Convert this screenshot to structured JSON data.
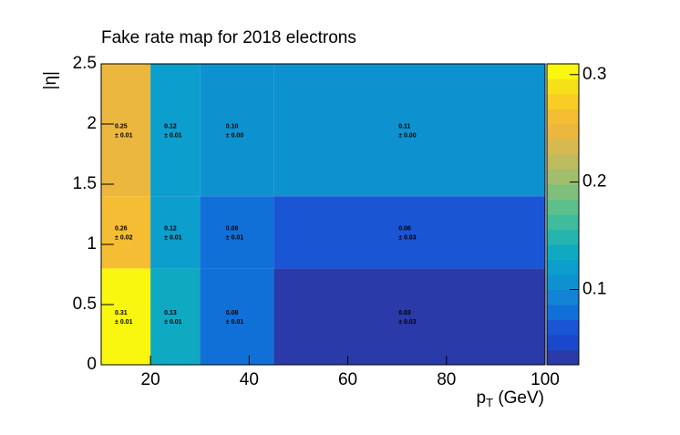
{
  "chart_data": {
    "type": "heatmap",
    "title": "Fake rate map for 2018 electrons",
    "x_label": [
      "p",
      "T",
      " (GeV)"
    ],
    "y_label": "|η|",
    "x_edges": [
      10,
      20,
      30,
      45,
      100
    ],
    "y_edges": [
      0,
      0.8,
      1.4,
      2.5
    ],
    "values": [
      [
        0.31,
        0.13,
        0.08,
        0.03
      ],
      [
        0.26,
        0.12,
        0.08,
        0.06
      ],
      [
        0.25,
        0.12,
        0.1,
        0.11
      ]
    ],
    "value_labels": [
      [
        "0.31",
        "0.13",
        "0.08",
        "0.03"
      ],
      [
        "0.26",
        "0.12",
        "0.08",
        "0.06"
      ],
      [
        "0.25",
        "0.12",
        "0.10",
        "0.11"
      ]
    ],
    "errors": [
      [
        0.01,
        0.01,
        0.01,
        0.03
      ],
      [
        0.02,
        0.01,
        0.01,
        0.03
      ],
      [
        0.01,
        0.01,
        0,
        0
      ]
    ],
    "error_labels": [
      [
        "± 0.01",
        "± 0.01",
        "± 0.01",
        "± 0.03"
      ],
      [
        "± 0.02",
        "± 0.01",
        "± 0.01",
        "± 0.03"
      ],
      [
        "± 0.01",
        "± 0.01",
        "± 0.00",
        "± 0.00"
      ]
    ],
    "xlim": [
      10,
      100
    ],
    "xticks": [
      20,
      40,
      60,
      80,
      100
    ],
    "ylim": [
      0,
      2.5
    ],
    "yticks": [
      0,
      0.5,
      1,
      1.5,
      2,
      2.5
    ],
    "zlim": [
      0.03,
      0.31
    ],
    "zticks": [
      0.1,
      0.2,
      0.3
    ],
    "palette": [
      "#2a3aa8",
      "#1a48cc",
      "#1a55d4",
      "#1170d8",
      "#1383d3",
      "#0e92cf",
      "#0c9ecc",
      "#0faac2",
      "#26b5ae",
      "#3ebc9c",
      "#5dbf8c",
      "#7fbf7b",
      "#a0be6c",
      "#bdbb5e",
      "#d6b951",
      "#ecb73f",
      "#f4bd33",
      "#f9cd24",
      "#f5e01a",
      "#f9f70f"
    ]
  }
}
